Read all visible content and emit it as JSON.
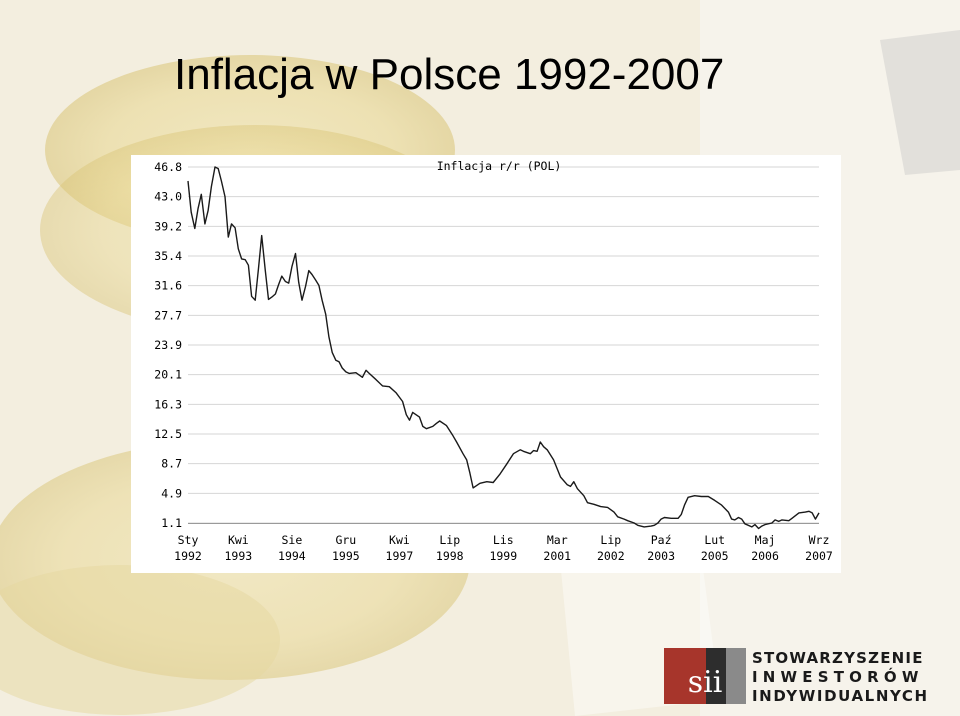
{
  "slide": {
    "title": "Inflacja w Polsce 1992-2007"
  },
  "logo": {
    "letters": "sii",
    "line1": "STOWARZYSZENIE",
    "line2": "INWESTORÓW",
    "line3": "INDYWIDUALNYCH",
    "colors": {
      "red": "#a7352b",
      "dark": "#2d2d2d",
      "grey": "#8a8a8a"
    }
  },
  "chart_data": {
    "type": "line",
    "title": "Inflacja r/r (POL)",
    "xlabel": "",
    "ylabel": "",
    "yticks": [
      "46.8",
      "43.0",
      "39.2",
      "35.4",
      "31.6",
      "27.7",
      "23.9",
      "20.1",
      "16.3",
      "12.5",
      "8.7",
      "4.9",
      "1.1"
    ],
    "ylim": [
      1.1,
      46.8
    ],
    "xticks": [
      {
        "month": "Sty",
        "year": "1992",
        "t": 1992.0
      },
      {
        "month": "Kwi",
        "year": "1993",
        "t": 1993.25
      },
      {
        "month": "Sie",
        "year": "1994",
        "t": 1994.58
      },
      {
        "month": "Gru",
        "year": "1995",
        "t": 1995.92
      },
      {
        "month": "Kwi",
        "year": "1997",
        "t": 1997.25
      },
      {
        "month": "Lip",
        "year": "1998",
        "t": 1998.5
      },
      {
        "month": "Lis",
        "year": "1999",
        "t": 1999.83
      },
      {
        "month": "Mar",
        "year": "2001",
        "t": 2001.17
      },
      {
        "month": "Lip",
        "year": "2002",
        "t": 2002.5
      },
      {
        "month": "Paź",
        "year": "2003",
        "t": 2003.75
      },
      {
        "month": "Lut",
        "year": "2005",
        "t": 2005.08
      },
      {
        "month": "Maj",
        "year": "2006",
        "t": 2006.33
      },
      {
        "month": "Wrz",
        "year": "2007",
        "t": 2007.67
      }
    ],
    "grid": true,
    "series": [
      {
        "color": "#1a1a1a",
        "points": [
          [
            1992.0,
            45.0
          ],
          [
            1992.08,
            41.0
          ],
          [
            1992.17,
            38.9
          ],
          [
            1992.25,
            41.5
          ],
          [
            1992.33,
            43.3
          ],
          [
            1992.42,
            39.5
          ],
          [
            1992.5,
            41.2
          ],
          [
            1992.58,
            44.3
          ],
          [
            1992.67,
            46.8
          ],
          [
            1992.75,
            46.6
          ],
          [
            1992.83,
            45.0
          ],
          [
            1992.92,
            43.0
          ],
          [
            1993.0,
            37.8
          ],
          [
            1993.08,
            39.5
          ],
          [
            1993.17,
            39.0
          ],
          [
            1993.25,
            36.3
          ],
          [
            1993.33,
            35.0
          ],
          [
            1993.42,
            34.9
          ],
          [
            1993.5,
            34.2
          ],
          [
            1993.58,
            30.2
          ],
          [
            1993.67,
            29.7
          ],
          [
            1993.75,
            33.8
          ],
          [
            1993.83,
            38.0
          ],
          [
            1993.92,
            33.5
          ],
          [
            1994.0,
            29.8
          ],
          [
            1994.08,
            30.1
          ],
          [
            1994.17,
            30.5
          ],
          [
            1994.25,
            31.7
          ],
          [
            1994.33,
            32.8
          ],
          [
            1994.42,
            32.1
          ],
          [
            1994.5,
            31.9
          ],
          [
            1994.58,
            34.0
          ],
          [
            1994.67,
            35.7
          ],
          [
            1994.75,
            32.0
          ],
          [
            1994.83,
            29.7
          ],
          [
            1994.92,
            31.5
          ],
          [
            1995.0,
            33.5
          ],
          [
            1995.08,
            33.0
          ],
          [
            1995.17,
            32.3
          ],
          [
            1995.25,
            31.6
          ],
          [
            1995.33,
            29.7
          ],
          [
            1995.42,
            27.9
          ],
          [
            1995.5,
            25.0
          ],
          [
            1995.58,
            23.0
          ],
          [
            1995.67,
            22.0
          ],
          [
            1995.75,
            21.8
          ],
          [
            1995.83,
            21.0
          ],
          [
            1995.92,
            20.5
          ],
          [
            1996.0,
            20.3
          ],
          [
            1996.17,
            20.4
          ],
          [
            1996.33,
            19.8
          ],
          [
            1996.42,
            20.7
          ],
          [
            1996.5,
            20.3
          ],
          [
            1996.67,
            19.5
          ],
          [
            1996.83,
            18.7
          ],
          [
            1997.0,
            18.6
          ],
          [
            1997.17,
            17.8
          ],
          [
            1997.33,
            16.7
          ],
          [
            1997.42,
            15.0
          ],
          [
            1997.5,
            14.3
          ],
          [
            1997.58,
            15.3
          ],
          [
            1997.75,
            14.7
          ],
          [
            1997.83,
            13.5
          ],
          [
            1997.92,
            13.2
          ],
          [
            1998.08,
            13.5
          ],
          [
            1998.17,
            13.9
          ],
          [
            1998.25,
            14.2
          ],
          [
            1998.42,
            13.6
          ],
          [
            1998.58,
            12.3
          ],
          [
            1998.67,
            11.5
          ],
          [
            1998.83,
            10.0
          ],
          [
            1998.92,
            9.2
          ],
          [
            1999.0,
            7.5
          ],
          [
            1999.08,
            5.6
          ],
          [
            1999.25,
            6.2
          ],
          [
            1999.42,
            6.4
          ],
          [
            1999.58,
            6.3
          ],
          [
            1999.75,
            7.4
          ],
          [
            1999.92,
            8.7
          ],
          [
            2000.08,
            10.0
          ],
          [
            2000.25,
            10.5
          ],
          [
            2000.33,
            10.3
          ],
          [
            2000.5,
            10.0
          ],
          [
            2000.58,
            10.4
          ],
          [
            2000.67,
            10.3
          ],
          [
            2000.75,
            11.5
          ],
          [
            2000.83,
            10.9
          ],
          [
            2000.92,
            10.5
          ],
          [
            2001.08,
            9.2
          ],
          [
            2001.25,
            7.0
          ],
          [
            2001.42,
            6.0
          ],
          [
            2001.5,
            5.8
          ],
          [
            2001.58,
            6.4
          ],
          [
            2001.67,
            5.5
          ],
          [
            2001.83,
            4.6
          ],
          [
            2001.92,
            3.7
          ],
          [
            2002.08,
            3.5
          ],
          [
            2002.25,
            3.2
          ],
          [
            2002.42,
            3.1
          ],
          [
            2002.58,
            2.5
          ],
          [
            2002.67,
            1.9
          ],
          [
            2002.83,
            1.6
          ],
          [
            2002.92,
            1.4
          ],
          [
            2003.08,
            1.1
          ],
          [
            2003.17,
            0.8
          ],
          [
            2003.33,
            0.6
          ],
          [
            2003.5,
            0.7
          ],
          [
            2003.58,
            0.8
          ],
          [
            2003.67,
            1.1
          ],
          [
            2003.75,
            1.6
          ],
          [
            2003.83,
            1.8
          ],
          [
            2004.0,
            1.7
          ],
          [
            2004.17,
            1.7
          ],
          [
            2004.25,
            2.2
          ],
          [
            2004.33,
            3.4
          ],
          [
            2004.42,
            4.4
          ],
          [
            2004.58,
            4.6
          ],
          [
            2004.75,
            4.5
          ],
          [
            2004.92,
            4.5
          ],
          [
            2005.08,
            4.0
          ],
          [
            2005.25,
            3.4
          ],
          [
            2005.42,
            2.5
          ],
          [
            2005.5,
            1.6
          ],
          [
            2005.58,
            1.5
          ],
          [
            2005.67,
            1.8
          ],
          [
            2005.75,
            1.6
          ],
          [
            2005.83,
            1.0
          ],
          [
            2006.0,
            0.6
          ],
          [
            2006.08,
            0.9
          ],
          [
            2006.17,
            0.4
          ],
          [
            2006.25,
            0.7
          ],
          [
            2006.33,
            0.9
          ],
          [
            2006.5,
            1.1
          ],
          [
            2006.58,
            1.5
          ],
          [
            2006.67,
            1.3
          ],
          [
            2006.75,
            1.5
          ],
          [
            2006.92,
            1.4
          ],
          [
            2007.0,
            1.7
          ],
          [
            2007.17,
            2.4
          ],
          [
            2007.33,
            2.5
          ],
          [
            2007.42,
            2.6
          ],
          [
            2007.5,
            2.4
          ],
          [
            2007.58,
            1.6
          ],
          [
            2007.67,
            2.4
          ]
        ]
      }
    ]
  }
}
